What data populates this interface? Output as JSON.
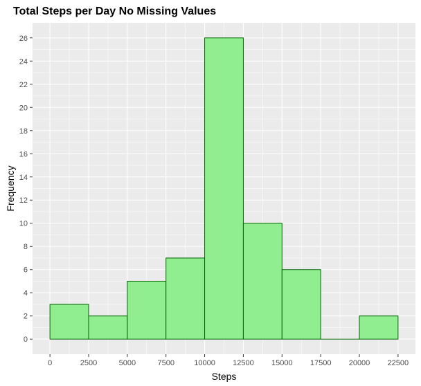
{
  "chart_data": {
    "type": "bar",
    "title": "Total Steps per Day No Missing Values",
    "xlabel": "Steps",
    "ylabel": "Frequency",
    "bins": [
      {
        "start": 0,
        "end": 2500,
        "count": 3
      },
      {
        "start": 2500,
        "end": 5000,
        "count": 2
      },
      {
        "start": 5000,
        "end": 7500,
        "count": 5
      },
      {
        "start": 7500,
        "end": 10000,
        "count": 7
      },
      {
        "start": 10000,
        "end": 12500,
        "count": 26
      },
      {
        "start": 12500,
        "end": 15000,
        "count": 10
      },
      {
        "start": 15000,
        "end": 17500,
        "count": 6
      },
      {
        "start": 17500,
        "end": 20000,
        "count": 0
      },
      {
        "start": 20000,
        "end": 22500,
        "count": 2
      }
    ],
    "xlim": [
      -1125,
      23625
    ],
    "ylim": [
      -1.3,
      27.3
    ],
    "x_ticks": [
      0,
      2500,
      5000,
      7500,
      10000,
      12500,
      15000,
      17500,
      20000,
      22500
    ],
    "y_ticks": [
      0,
      2,
      4,
      6,
      8,
      10,
      12,
      14,
      16,
      18,
      20,
      22,
      24,
      26
    ],
    "grid": true,
    "legend": "none",
    "colors": {
      "bar_fill": "#90EE90",
      "bar_stroke": "#006400",
      "panel_background": "#EBEBEB",
      "grid_major": "#FFFFFF",
      "tick_text": "#4D4D4D",
      "tick_mark": "#333333"
    }
  }
}
